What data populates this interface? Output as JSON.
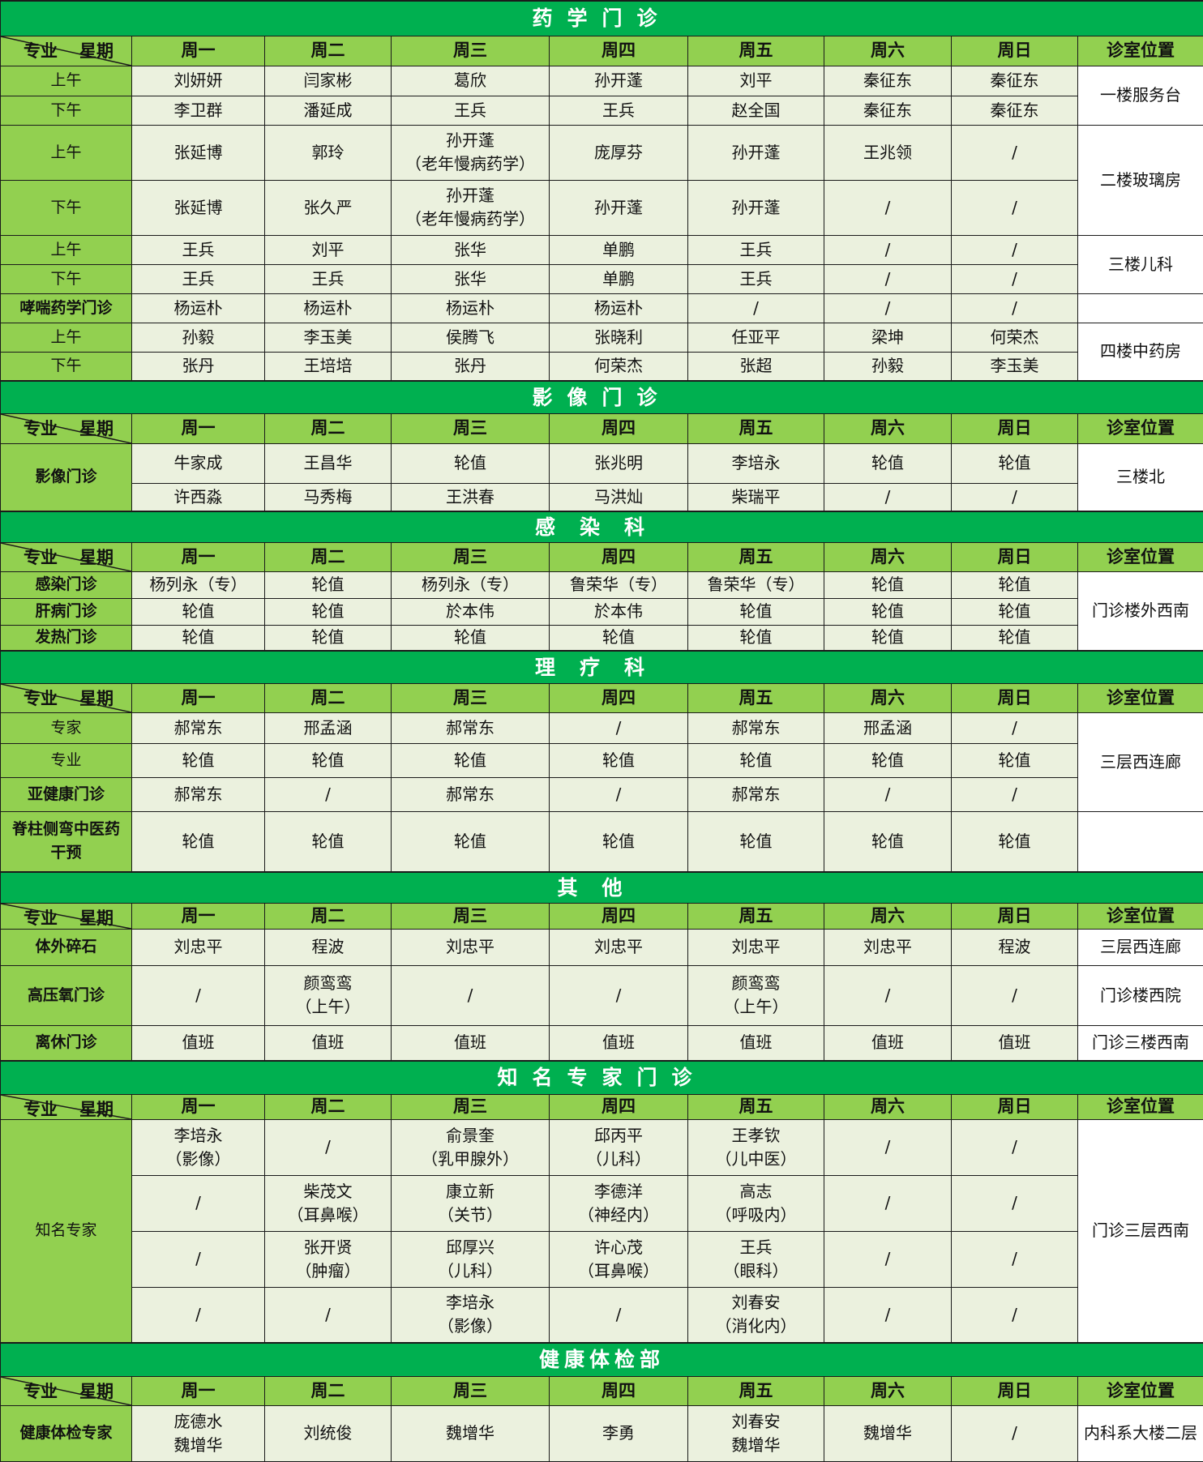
{
  "header": {
    "corner_left": "专业",
    "corner_right": "星期",
    "days": [
      "周一",
      "周二",
      "周三",
      "周四",
      "周五",
      "周六",
      "周日"
    ],
    "location": "诊室位置"
  },
  "colors": {
    "title_bg": "#00b050",
    "header_bg": "#92d050",
    "cell_bg": "#ebf1de",
    "location_bg": "#ffffff"
  },
  "sections": [
    {
      "title": "药学门诊",
      "style": "normal",
      "rows": [
        {
          "label": "上午",
          "cells": [
            "刘妍妍",
            "闫家彬",
            "葛欣",
            "孙开蓬",
            "刘平",
            "秦征东",
            "秦征东"
          ],
          "location": "一楼服务台",
          "loc_span": 2
        },
        {
          "label": "下午",
          "cells": [
            "李卫群",
            "潘延成",
            "王兵",
            "王兵",
            "赵全国",
            "秦征东",
            "秦征东"
          ]
        },
        {
          "label": "上午",
          "cells": [
            "张延博",
            "郭玲",
            "孙开蓬\n（老年慢病药学）",
            "庞厚芬",
            "孙开蓬",
            "王兆领",
            "/"
          ],
          "location": "二楼玻璃房",
          "loc_span": 2
        },
        {
          "label": "下午",
          "cells": [
            "张延博",
            "张久严",
            "孙开蓬\n（老年慢病药学）",
            "孙开蓬",
            "孙开蓬",
            "/",
            "/"
          ]
        },
        {
          "label": "上午",
          "cells": [
            "王兵",
            "刘平",
            "张华",
            "单鹏",
            "王兵",
            "/",
            "/"
          ],
          "location": "三楼儿科",
          "loc_span": 2
        },
        {
          "label": "下午",
          "cells": [
            "王兵",
            "王兵",
            "张华",
            "单鹏",
            "王兵",
            "/",
            "/"
          ]
        },
        {
          "label": "哮喘药学门诊",
          "bold": true,
          "cells": [
            "杨运朴",
            "杨运朴",
            "杨运朴",
            "杨运朴",
            "/",
            "/",
            "/"
          ],
          "location": "",
          "loc_span": 1
        },
        {
          "label": "上午",
          "cells": [
            "孙毅",
            "李玉美",
            "侯腾飞",
            "张晓利",
            "任亚平",
            "梁坤",
            "何荣杰"
          ],
          "location": "四楼中药房",
          "loc_span": 2
        },
        {
          "label": "下午",
          "cells": [
            "张丹",
            "王培培",
            "张丹",
            "何荣杰",
            "张超",
            "孙毅",
            "李玉美"
          ]
        }
      ]
    },
    {
      "title": "影像门诊",
      "style": "normal",
      "rows": [
        {
          "label": "影像门诊",
          "label_span": 2,
          "bold": true,
          "cells": [
            "牛家成",
            "王昌华",
            "轮值",
            "张兆明",
            "李培永",
            "轮值",
            "轮值"
          ],
          "location": "三楼北",
          "loc_span": 2
        },
        {
          "cells": [
            "许西淼",
            "马秀梅",
            "王洪春",
            "马洪灿",
            "柴瑞平",
            "/",
            "/"
          ]
        }
      ]
    },
    {
      "title": "感染科",
      "style": "wide",
      "rows": [
        {
          "label": "感染门诊",
          "bold": true,
          "cells": [
            "杨列永（专）",
            "轮值",
            "杨列永（专）",
            "鲁荣华（专）",
            "鲁荣华（专）",
            "轮值",
            "轮值"
          ],
          "location": "门诊楼外西南",
          "loc_span": 3
        },
        {
          "label": "肝病门诊",
          "bold": true,
          "cells": [
            "轮值",
            "轮值",
            "於本伟",
            "於本伟",
            "轮值",
            "轮值",
            "轮值"
          ]
        },
        {
          "label": "发热门诊",
          "bold": true,
          "cells": [
            "轮值",
            "轮值",
            "轮值",
            "轮值",
            "轮值",
            "轮值",
            "轮值"
          ]
        }
      ]
    },
    {
      "title": "理疗科",
      "style": "wide",
      "rows": [
        {
          "label": "专家",
          "cells": [
            "郝常东",
            "邢孟涵",
            "郝常东",
            "/",
            "郝常东",
            "邢孟涵",
            "/"
          ],
          "location": "三层西连廊",
          "loc_span": 3
        },
        {
          "label": "专业",
          "cells": [
            "轮值",
            "轮值",
            "轮值",
            "轮值",
            "轮值",
            "轮值",
            "轮值"
          ]
        },
        {
          "label": "亚健康门诊",
          "bold": true,
          "cells": [
            "郝常东",
            "/",
            "郝常东",
            "/",
            "郝常东",
            "/",
            "/"
          ]
        },
        {
          "label": "脊柱侧弯中医药\n干预",
          "bold": true,
          "cells": [
            "轮值",
            "轮值",
            "轮值",
            "轮值",
            "轮值",
            "轮值",
            "轮值"
          ],
          "location": "",
          "loc_span": 1
        }
      ]
    },
    {
      "title": "其他",
      "style": "wide",
      "rows": [
        {
          "label": "体外碎石",
          "bold": true,
          "cells": [
            "刘忠平",
            "程波",
            "刘忠平",
            "刘忠平",
            "刘忠平",
            "刘忠平",
            "程波"
          ],
          "location": "三层西连廊",
          "loc_span": 1
        },
        {
          "label": "高压氧门诊",
          "bold": true,
          "cells": [
            "/",
            "颜鸾鸾\n（上午）",
            "/",
            "/",
            "颜鸾鸾\n（上午）",
            "/",
            "/"
          ],
          "location": "门诊楼西院",
          "loc_span": 1
        },
        {
          "label": "离休门诊",
          "bold": true,
          "cells": [
            "值班",
            "值班",
            "值班",
            "值班",
            "值班",
            "值班",
            "值班"
          ],
          "location": "门诊三楼西南",
          "loc_span": 1
        }
      ]
    },
    {
      "title": "知名专家门诊",
      "style": "normal",
      "rows": [
        {
          "label": "知名专家",
          "label_span": 4,
          "cells": [
            "李培永\n（影像）",
            "/",
            "俞景奎\n（乳甲腺外）",
            "邱丙平\n（儿科）",
            "王孝钦\n（儿中医）",
            "/",
            "/"
          ],
          "location": "门诊三层西南",
          "loc_span": 4
        },
        {
          "cells": [
            "/",
            "柴茂文\n（耳鼻喉）",
            "康立新\n（关节）",
            "李德洋\n（神经内）",
            "高志\n（呼吸内）",
            "/",
            "/"
          ]
        },
        {
          "cells": [
            "/",
            "张开贤\n（肿瘤）",
            "邱厚兴\n（儿科）",
            "许心茂\n（耳鼻喉）",
            "王兵\n（眼科）",
            "/",
            "/"
          ]
        },
        {
          "cells": [
            "/",
            "/",
            "李培永\n（影像）",
            "/",
            "刘春安\n（消化内）",
            "/",
            "/"
          ]
        }
      ]
    },
    {
      "title": "健康体检部",
      "style": "tight",
      "rows": [
        {
          "label": "健康体检专家",
          "bold": true,
          "cells": [
            "庞德水\n魏增华",
            "刘统俊",
            "魏增华",
            "李勇",
            "刘春安\n魏增华",
            "魏增华",
            "/"
          ],
          "location": "内科系大楼二层",
          "loc_span": 1
        }
      ]
    }
  ]
}
